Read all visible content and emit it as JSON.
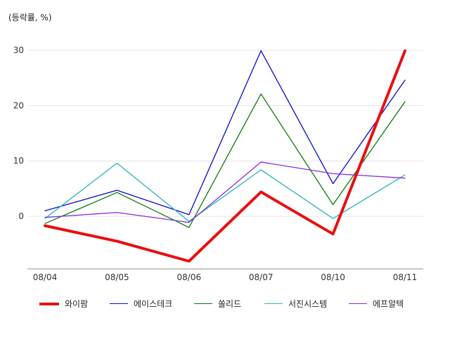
{
  "chart_data": {
    "type": "line",
    "unit_label": "(등락률, %)",
    "categories": [
      "08/04",
      "08/05",
      "08/06",
      "08/07",
      "08/10",
      "08/11"
    ],
    "ylim": [
      -9.5,
      34
    ],
    "yticks": [
      0,
      10,
      20,
      30
    ],
    "grid": true,
    "legend_position": "bottom",
    "series": [
      {
        "name": "와이팜",
        "color": "#e81010",
        "values": [
          -1.7,
          -4.5,
          -8.1,
          4.4,
          -3.2,
          29.9
        ],
        "width": 4
      },
      {
        "name": "에이스테크",
        "color": "#0a0acf",
        "values": [
          1.0,
          4.7,
          0.3,
          29.9,
          5.9,
          24.6
        ],
        "width": 1.3
      },
      {
        "name": "쏠리드",
        "color": "#0b7a0b",
        "values": [
          -1.3,
          4.3,
          -2.0,
          22.1,
          2.1,
          20.7
        ],
        "width": 1.3
      },
      {
        "name": "서진시스템",
        "color": "#2ab5b5",
        "values": [
          -0.4,
          9.6,
          -0.9,
          8.4,
          -0.4,
          7.5
        ],
        "width": 1.3
      },
      {
        "name": "에프알텍",
        "color": "#8a2be2",
        "values": [
          -0.2,
          0.7,
          -1.1,
          9.8,
          7.7,
          6.9
        ],
        "width": 1.3
      }
    ]
  }
}
